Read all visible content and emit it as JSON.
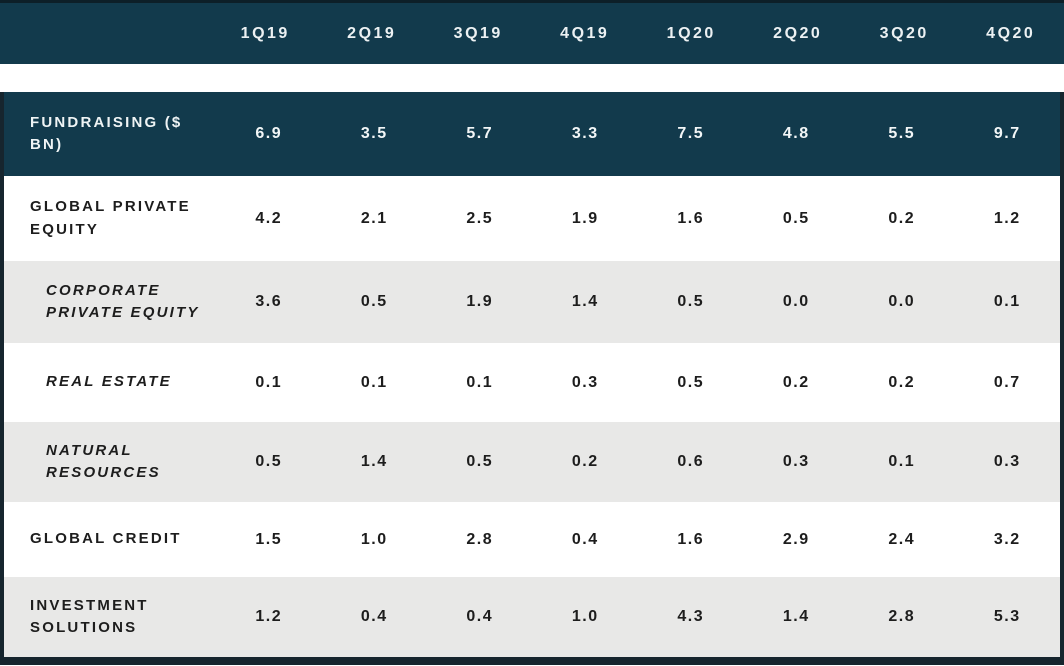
{
  "colors": {
    "header_background": "#123A4C",
    "header_text": "#FFFFFF",
    "row_background": "#FFFFFF",
    "row_alt_background": "#E8E8E7",
    "body_text": "#1D1D1D",
    "border": "#16252E"
  },
  "chart_data": {
    "type": "table",
    "columns": [
      "1Q19",
      "2Q19",
      "3Q19",
      "4Q19",
      "1Q20",
      "2Q20",
      "3Q20",
      "4Q20"
    ],
    "rows": [
      {
        "label": "FUNDRAISING ($ BN)",
        "emphasis": "total",
        "values": [
          "6.9",
          "3.5",
          "5.7",
          "3.3",
          "7.5",
          "4.8",
          "5.5",
          "9.7"
        ]
      },
      {
        "label": "GLOBAL PRIVATE EQUITY",
        "emphasis": "main",
        "values": [
          "4.2",
          "2.1",
          "2.5",
          "1.9",
          "1.6",
          "0.5",
          "0.2",
          "1.2"
        ]
      },
      {
        "label": "CORPORATE PRIVATE EQUITY",
        "emphasis": "sub",
        "values": [
          "3.6",
          "0.5",
          "1.9",
          "1.4",
          "0.5",
          "0.0",
          "0.0",
          "0.1"
        ]
      },
      {
        "label": "REAL ESTATE",
        "emphasis": "sub",
        "values": [
          "0.1",
          "0.1",
          "0.1",
          "0.3",
          "0.5",
          "0.2",
          "0.2",
          "0.7"
        ]
      },
      {
        "label": "NATURAL RESOURCES",
        "emphasis": "sub",
        "values": [
          "0.5",
          "1.4",
          "0.5",
          "0.2",
          "0.6",
          "0.3",
          "0.1",
          "0.3"
        ]
      },
      {
        "label": "GLOBAL CREDIT",
        "emphasis": "main",
        "values": [
          "1.5",
          "1.0",
          "2.8",
          "0.4",
          "1.6",
          "2.9",
          "2.4",
          "3.2"
        ]
      },
      {
        "label": "INVESTMENT SOLUTIONS",
        "emphasis": "main",
        "values": [
          "1.2",
          "0.4",
          "0.4",
          "1.0",
          "4.3",
          "1.4",
          "2.8",
          "5.3"
        ]
      }
    ]
  }
}
